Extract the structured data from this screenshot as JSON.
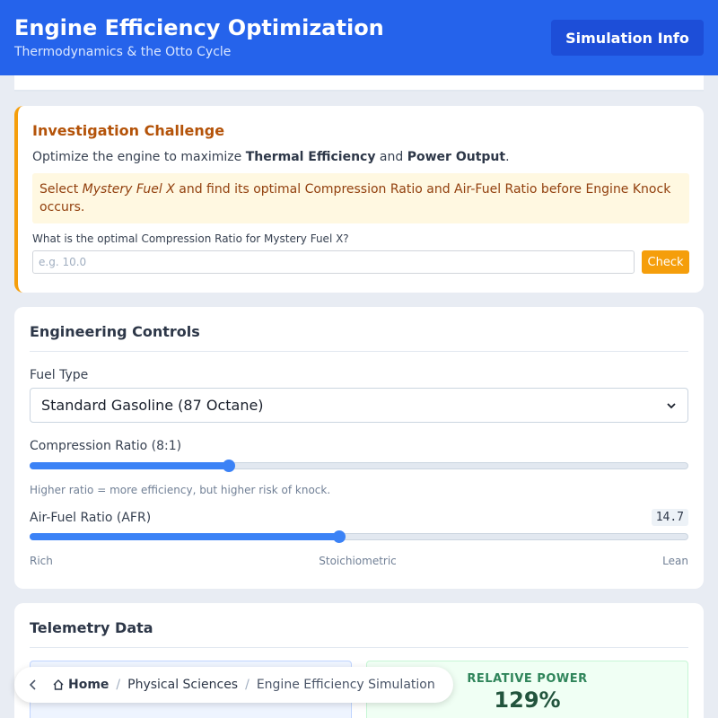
{
  "header": {
    "title": "Engine Efficiency Optimization",
    "subtitle": "Thermodynamics & the Otto Cycle",
    "info_button": "Simulation Info"
  },
  "challenge": {
    "title": "Investigation Challenge",
    "desc_prefix": "Optimize the engine to maximize ",
    "desc_bold1": "Thermal Efficiency",
    "desc_and": " and ",
    "desc_bold2": "Power Output",
    "desc_end": ".",
    "task_prefix": "Select ",
    "task_fuel": "Mystery Fuel X",
    "task_suffix": " and find its optimal Compression Ratio and Air-Fuel Ratio before Engine Knock occurs.",
    "question": "What is the optimal Compression Ratio for Mystery Fuel X?",
    "answer_placeholder": "e.g. 10.0",
    "answer_value": "",
    "check_button": "Check"
  },
  "controls": {
    "title": "Engineering Controls",
    "fuel_label": "Fuel Type",
    "fuel_selected": "Standard Gasoline (87 Octane)",
    "compression_label": "Compression Ratio (8:1)",
    "compression_fraction": 0.303,
    "compression_hint": "Higher ratio = more efficiency, but higher risk of knock.",
    "afr_label": "Air-Fuel Ratio (AFR)",
    "afr_value": "14.7",
    "afr_fraction": 0.47,
    "scale_rich": "Rich",
    "scale_stoich": "Stoichiometric",
    "scale_lean": "Lean"
  },
  "telemetry": {
    "title": "Telemetry Data",
    "relative_power_label": "RELATIVE POWER",
    "relative_power_value": "129%"
  },
  "breadcrumb": {
    "home": "Home",
    "sep": "/",
    "section": "Physical Sciences",
    "current": "Engine Efficiency Simulation"
  },
  "colors": {
    "header": "#2563eb",
    "accent_orange": "#f59e0b",
    "slider": "#3b82f6"
  }
}
